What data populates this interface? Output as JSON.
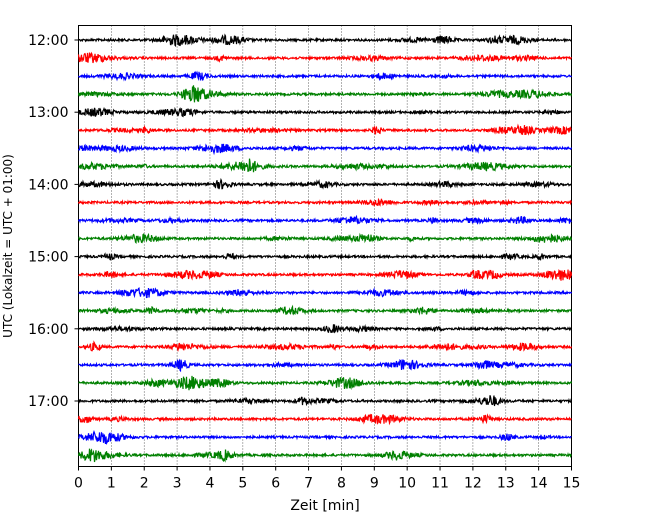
{
  "chart_data": {
    "type": "line",
    "subtype": "helicorder",
    "title": "",
    "xlabel": "Zeit  [min]",
    "ylabel": "UTC (Lokalzeit = UTC + 01:00)",
    "xlim": [
      0,
      15
    ],
    "x_ticks": [
      0,
      1,
      2,
      3,
      4,
      5,
      6,
      7,
      8,
      9,
      10,
      11,
      12,
      13,
      14,
      15
    ],
    "x_tick_labels": [
      "0",
      "1",
      "2",
      "3",
      "4",
      "5",
      "6",
      "7",
      "8",
      "9",
      "10",
      "11",
      "12",
      "13",
      "14",
      "15"
    ],
    "y_ticks": [
      "12:00",
      "13:00",
      "14:00",
      "15:00",
      "16:00",
      "17:00"
    ],
    "trace_start_times": [
      "12:00",
      "12:15",
      "12:30",
      "12:45",
      "13:00",
      "13:15",
      "13:30",
      "13:45",
      "14:00",
      "14:15",
      "14:30",
      "14:45",
      "15:00",
      "15:15",
      "15:30",
      "15:45",
      "16:00",
      "16:15",
      "16:30",
      "16:45",
      "17:00",
      "17:15",
      "17:30",
      "17:45"
    ],
    "trace_colors": [
      "#000000",
      "#ff0000",
      "#0000ff",
      "#008000"
    ],
    "grid": "vertical dotted"
  }
}
